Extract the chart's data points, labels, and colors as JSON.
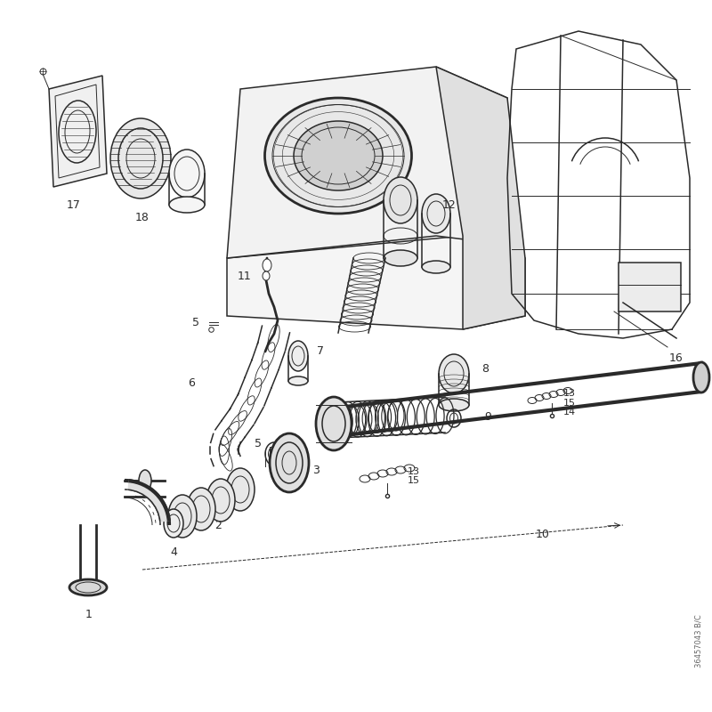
{
  "background_color": "#ffffff",
  "line_color": "#2a2a2a",
  "label_color": "#1a1a1a",
  "figsize": [
    8.0,
    8.0
  ],
  "dpi": 100,
  "watermark_text": "36457043 B/C",
  "lw_thin": 0.7,
  "lw_med": 1.1,
  "lw_thick": 2.0,
  "lw_xthick": 3.0
}
